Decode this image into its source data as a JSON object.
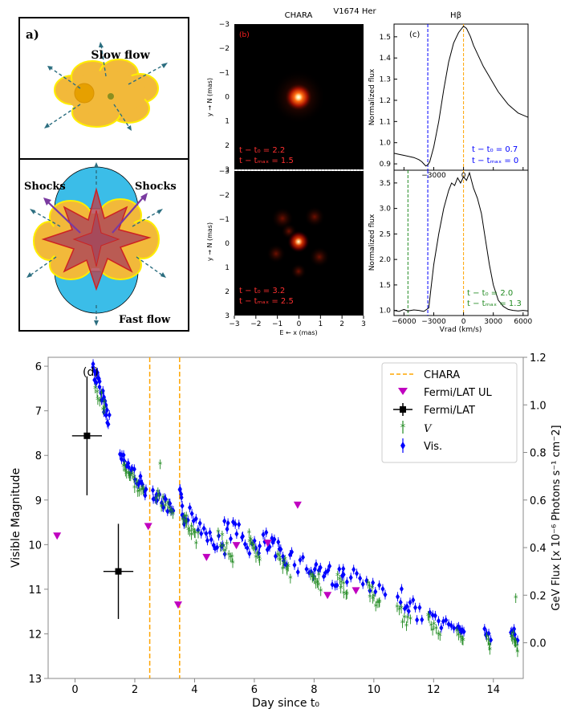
{
  "figure": {
    "panel_a": {
      "label": "a)",
      "slow_flow": "Slow flow",
      "shocks_left": "Shocks",
      "shocks_right": "Shocks",
      "fast_flow": "Fast flow"
    },
    "header": {
      "chara": "CHARA",
      "object": "V1674 Her",
      "hbeta": "Hβ"
    },
    "panel_b": {
      "label": "(b)",
      "top_epoch": [
        "t − t₀ = 2.2",
        "t − tₘₐₓ = 1.5"
      ],
      "bottom_epoch": [
        "t − t₀ = 3.2",
        "t − tₘₐₓ = 2.5"
      ],
      "ylabel": "y → N (mas)",
      "xlabel": "E ← x (mas)",
      "ticks": [
        "−3",
        "−2",
        "−1",
        "0",
        "1",
        "2",
        "3"
      ]
    },
    "panel_c": {
      "label": "(c)",
      "ylabel": "Normalized flux",
      "xlabel": "Vrad (km/s)",
      "top_epoch": [
        "t − t₀ = 0.7",
        "t − tₘₐₓ = 0"
      ],
      "bottom_epoch": [
        "t − t₀ = 2.0",
        "t − tₘₐₓ = 1.3"
      ],
      "top_yticks": [
        "0.9",
        "1.0",
        "1.1",
        "1.2",
        "1.3",
        "1.4",
        "1.5"
      ],
      "bottom_yticks": [
        "1.0",
        "1.5",
        "2.0",
        "2.5",
        "3.0",
        "3.5"
      ],
      "xticks": [
        "−6000",
        "−3000",
        "0",
        "3000",
        "6000"
      ]
    },
    "colors": {
      "blue": "#0000ff",
      "green": "#228B22",
      "magenta": "#c000c0",
      "orange": "#ffa500",
      "black": "#000000"
    }
  },
  "chart_data": [
    {
      "type": "scatter",
      "id": "panel_d",
      "label": "(d)",
      "xlabel": "Day since t₀",
      "ylabel": "Visible Magnitude",
      "y2label": "GeV Flux [x 10⁻⁶ Photons s⁻¹ cm⁻2]",
      "xlim": [
        -0.9,
        15.0
      ],
      "ylim_inverted": [
        13,
        5.8
      ],
      "y2lim": [
        -0.15,
        1.2
      ],
      "xticks": [
        0,
        2,
        4,
        6,
        8,
        10,
        12,
        14
      ],
      "yticks": [
        6,
        7,
        8,
        9,
        10,
        11,
        12,
        13
      ],
      "y2ticks": [
        0.0,
        0.2,
        0.4,
        0.6,
        0.8,
        1.0,
        1.2
      ],
      "legend": [
        "CHARA",
        "Fermi/LAT UL",
        "Fermi/LAT",
        "V",
        "Vis."
      ],
      "chara_epochs": [
        2.5,
        3.5
      ],
      "fermi_lat": [
        {
          "x": 0.4,
          "y": 0.87,
          "xerr": 0.5,
          "yerr": 0.25
        },
        {
          "x": 1.45,
          "y": 0.3,
          "xerr": 0.5,
          "yerr": 0.2
        }
      ],
      "fermi_lat_ul": [
        {
          "x": -0.6,
          "y": 0.45
        },
        {
          "x": 2.45,
          "y": 0.49
        },
        {
          "x": 3.45,
          "y": 0.16
        },
        {
          "x": 4.4,
          "y": 0.36
        },
        {
          "x": 5.4,
          "y": 0.41
        },
        {
          "x": 6.45,
          "y": 0.42
        },
        {
          "x": 7.45,
          "y": 0.58
        },
        {
          "x": 8.45,
          "y": 0.2
        },
        {
          "x": 9.4,
          "y": 0.22
        }
      ],
      "vis_segments": [
        {
          "x0": 0.6,
          "x1": 1.15,
          "m0": 6.0,
          "m1": 7.2,
          "n": 24,
          "s": 0.2
        },
        {
          "x0": 1.5,
          "x1": 2.4,
          "m0": 8.0,
          "m1": 8.8,
          "n": 22,
          "s": 0.15
        },
        {
          "x0": 2.6,
          "x1": 3.3,
          "m0": 8.8,
          "m1": 9.3,
          "n": 18,
          "s": 0.15
        },
        {
          "x0": 3.5,
          "x1": 3.7,
          "m0": 8.9,
          "m1": 9.5,
          "n": 10,
          "s": 0.2
        },
        {
          "x0": 3.8,
          "x1": 5.0,
          "m0": 9.3,
          "m1": 10.1,
          "n": 20,
          "s": 0.2
        },
        {
          "x0": 5.0,
          "x1": 6.2,
          "m0": 9.5,
          "m1": 10.2,
          "n": 18,
          "s": 0.25
        },
        {
          "x0": 6.3,
          "x1": 7.0,
          "m0": 9.9,
          "m1": 10.3,
          "n": 14,
          "s": 0.25
        },
        {
          "x0": 7.0,
          "x1": 8.0,
          "m0": 10.2,
          "m1": 10.6,
          "n": 12,
          "s": 0.25
        },
        {
          "x0": 8.0,
          "x1": 9.0,
          "m0": 10.5,
          "m1": 10.8,
          "n": 14,
          "s": 0.25
        },
        {
          "x0": 9.0,
          "x1": 10.4,
          "m0": 10.6,
          "m1": 11.2,
          "n": 14,
          "s": 0.2
        },
        {
          "x0": 10.8,
          "x1": 11.6,
          "m0": 11.1,
          "m1": 11.6,
          "n": 12,
          "s": 0.2
        },
        {
          "x0": 11.9,
          "x1": 12.7,
          "m0": 11.6,
          "m1": 11.9,
          "n": 10,
          "s": 0.15
        },
        {
          "x0": 12.8,
          "x1": 13.0,
          "m0": 11.8,
          "m1": 12.0,
          "n": 6,
          "s": 0.1
        },
        {
          "x0": 13.7,
          "x1": 13.9,
          "m0": 11.9,
          "m1": 12.1,
          "n": 5,
          "s": 0.1
        },
        {
          "x0": 14.6,
          "x1": 14.8,
          "m0": 11.9,
          "m1": 12.2,
          "n": 6,
          "s": 0.15
        }
      ],
      "v_segments": [
        {
          "x0": 0.7,
          "x1": 1.0,
          "m0": 6.5,
          "m1": 7.0,
          "n": 8,
          "s": 0.2
        },
        {
          "x0": 1.6,
          "x1": 2.3,
          "m0": 8.2,
          "m1": 8.9,
          "n": 16,
          "s": 0.12
        },
        {
          "x0": 2.7,
          "x1": 3.3,
          "m0": 8.9,
          "m1": 9.3,
          "n": 10,
          "s": 0.12
        },
        {
          "x0": 3.6,
          "x1": 4.1,
          "m0": 9.4,
          "m1": 9.9,
          "n": 14,
          "s": 0.15
        },
        {
          "x0": 4.8,
          "x1": 5.3,
          "m0": 9.8,
          "m1": 10.3,
          "n": 10,
          "s": 0.2
        },
        {
          "x0": 5.8,
          "x1": 6.2,
          "m0": 9.9,
          "m1": 10.5,
          "n": 10,
          "s": 0.2
        },
        {
          "x0": 6.8,
          "x1": 7.2,
          "m0": 10.2,
          "m1": 10.7,
          "n": 10,
          "s": 0.2
        },
        {
          "x0": 7.9,
          "x1": 8.2,
          "m0": 10.6,
          "m1": 10.9,
          "n": 10,
          "s": 0.15
        },
        {
          "x0": 8.8,
          "x1": 9.1,
          "m0": 10.8,
          "m1": 11.1,
          "n": 8,
          "s": 0.12
        },
        {
          "x0": 9.8,
          "x1": 10.2,
          "m0": 11.0,
          "m1": 11.4,
          "n": 10,
          "s": 0.15
        },
        {
          "x0": 10.8,
          "x1": 11.2,
          "m0": 11.5,
          "m1": 11.8,
          "n": 8,
          "s": 0.15
        },
        {
          "x0": 11.8,
          "x1": 12.2,
          "m0": 11.7,
          "m1": 12.0,
          "n": 8,
          "s": 0.12
        },
        {
          "x0": 12.8,
          "x1": 13.0,
          "m0": 11.9,
          "m1": 12.1,
          "n": 5,
          "s": 0.1
        },
        {
          "x0": 13.8,
          "x1": 13.9,
          "m0": 12.1,
          "m1": 12.4,
          "n": 5,
          "s": 0.1
        },
        {
          "x0": 14.6,
          "x1": 14.8,
          "m0": 12.0,
          "m1": 12.4,
          "n": 8,
          "s": 0.15
        }
      ],
      "v_isolated": [
        {
          "x": 2.85,
          "y": 8.2
        },
        {
          "x": 14.75,
          "y": 11.2
        }
      ]
    },
    {
      "type": "line",
      "id": "panel_c_top",
      "xlabel": "Vrad (km/s)",
      "ylabel": "Normalized flux",
      "xlim": [
        -7000,
        6500
      ],
      "ylim": [
        0.87,
        1.56
      ],
      "vlines": [
        {
          "x": -3600,
          "color": "blue"
        },
        {
          "x": 0,
          "color": "orange"
        }
      ],
      "x": [
        -7000,
        -6500,
        -6000,
        -5500,
        -5000,
        -4500,
        -4200,
        -4000,
        -3800,
        -3600,
        -3400,
        -3000,
        -2500,
        -2000,
        -1500,
        -1000,
        -500,
        0,
        300,
        700,
        1000,
        1500,
        2000,
        2500,
        3000,
        3500,
        4000,
        4500,
        5000,
        5500,
        6000,
        6500
      ],
      "y": [
        0.95,
        0.945,
        0.94,
        0.935,
        0.93,
        0.92,
        0.91,
        0.9,
        0.89,
        0.895,
        0.91,
        0.98,
        1.1,
        1.25,
        1.38,
        1.47,
        1.52,
        1.55,
        1.54,
        1.5,
        1.46,
        1.41,
        1.36,
        1.32,
        1.28,
        1.24,
        1.21,
        1.18,
        1.16,
        1.14,
        1.13,
        1.12
      ]
    },
    {
      "type": "line",
      "id": "panel_c_bottom",
      "xlabel": "Vrad (km/s)",
      "ylabel": "Normalized flux",
      "xlim": [
        -7000,
        6500
      ],
      "ylim": [
        0.9,
        3.75
      ],
      "vlines": [
        {
          "x": -5600,
          "color": "green"
        },
        {
          "x": -3600,
          "color": "blue"
        },
        {
          "x": 0,
          "color": "orange"
        }
      ],
      "x": [
        -7000,
        -6500,
        -6000,
        -5600,
        -5300,
        -5000,
        -4500,
        -4000,
        -3500,
        -3300,
        -3000,
        -2500,
        -2000,
        -1500,
        -1200,
        -900,
        -600,
        -300,
        0,
        300,
        600,
        1000,
        1400,
        1800,
        2200,
        2600,
        3000,
        3500,
        4000,
        4500,
        5000,
        5500,
        6000,
        6500
      ],
      "y": [
        1.0,
        0.98,
        1.02,
        0.99,
        1.0,
        1.01,
        1.0,
        0.98,
        1.05,
        1.4,
        1.9,
        2.5,
        3.0,
        3.35,
        3.5,
        3.45,
        3.6,
        3.5,
        3.62,
        3.55,
        3.7,
        3.4,
        3.2,
        2.9,
        2.4,
        1.9,
        1.5,
        1.2,
        1.08,
        1.02,
        1.0,
        0.99,
        1.0,
        0.99
      ]
    }
  ]
}
